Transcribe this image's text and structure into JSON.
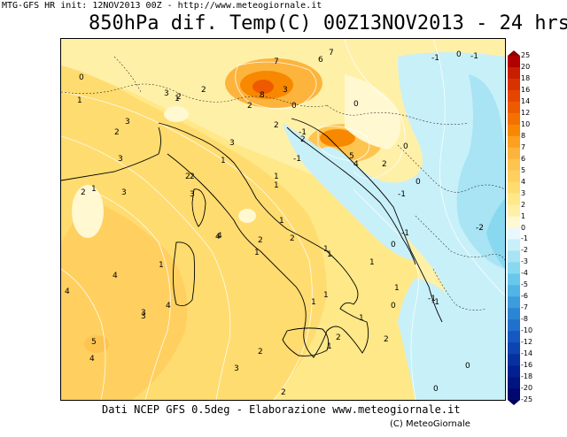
{
  "header": {
    "info_line": "MTG-GFS HR init: 12NOV2013 00Z - http://www.meteogiornale.it"
  },
  "title": "850hPa dif. Temp(C) 00Z13NOV2013 - 24 hrs",
  "footer": {
    "credit": "Dati NCEP GFS 0.5deg - Elaborazione www.meteogiornale.it",
    "copyright": "(C) MeteoGiornale"
  },
  "colorbar": {
    "levels": [
      "25",
      "20",
      "18",
      "16",
      "14",
      "12",
      "10",
      "8",
      "7",
      "6",
      "5",
      "4",
      "3",
      "2",
      "1",
      "0",
      "-1",
      "-2",
      "-3",
      "-4",
      "-5",
      "-6",
      "-7",
      "-8",
      "-10",
      "-12",
      "-14",
      "-16",
      "-18",
      "-20",
      "-25"
    ],
    "colors": [
      "#b00000",
      "#c81e00",
      "#d83200",
      "#e44600",
      "#ee5a00",
      "#f47000",
      "#f88800",
      "#fca020",
      "#fdb43c",
      "#fec450",
      "#ffd060",
      "#ffdc70",
      "#ffe888",
      "#fff0a8",
      "#fff8d0",
      "#e8f8fc",
      "#c8f0f8",
      "#a8e4f4",
      "#88d8f0",
      "#68c8ec",
      "#50b4e4",
      "#3c9cdc",
      "#2c84d4",
      "#2070cc",
      "#1458c0",
      "#0c44b0",
      "#0630a0",
      "#022090",
      "#001480",
      "#000870"
    ]
  },
  "map": {
    "contour_labels": [
      "7",
      "7",
      "6",
      "8",
      "3",
      "2",
      "3",
      "1",
      "1",
      "2",
      "2",
      "3",
      "2",
      "1",
      "2",
      "3",
      "2",
      "1",
      "3",
      "3",
      "2",
      "2",
      "5",
      "4",
      "2",
      "2",
      "1",
      "3",
      "4",
      "4",
      "4",
      "3",
      "4",
      "2",
      "1",
      "2",
      "1",
      "4",
      "5",
      "3",
      "4",
      "2",
      "3",
      "2",
      "1",
      "1",
      "2",
      "2",
      "1",
      "1",
      "0",
      "0",
      "0",
      "-1",
      "-1",
      "0",
      "-1",
      "-1",
      "0",
      "-2",
      "1",
      "0",
      "1",
      "-1",
      "1",
      "0",
      "-1",
      "0",
      "1",
      "0",
      "0",
      "1",
      "-1",
      "1",
      "-1"
    ]
  },
  "icons": {
    "colorbar_top": "triangle-up",
    "colorbar_bottom": "triangle-down"
  }
}
